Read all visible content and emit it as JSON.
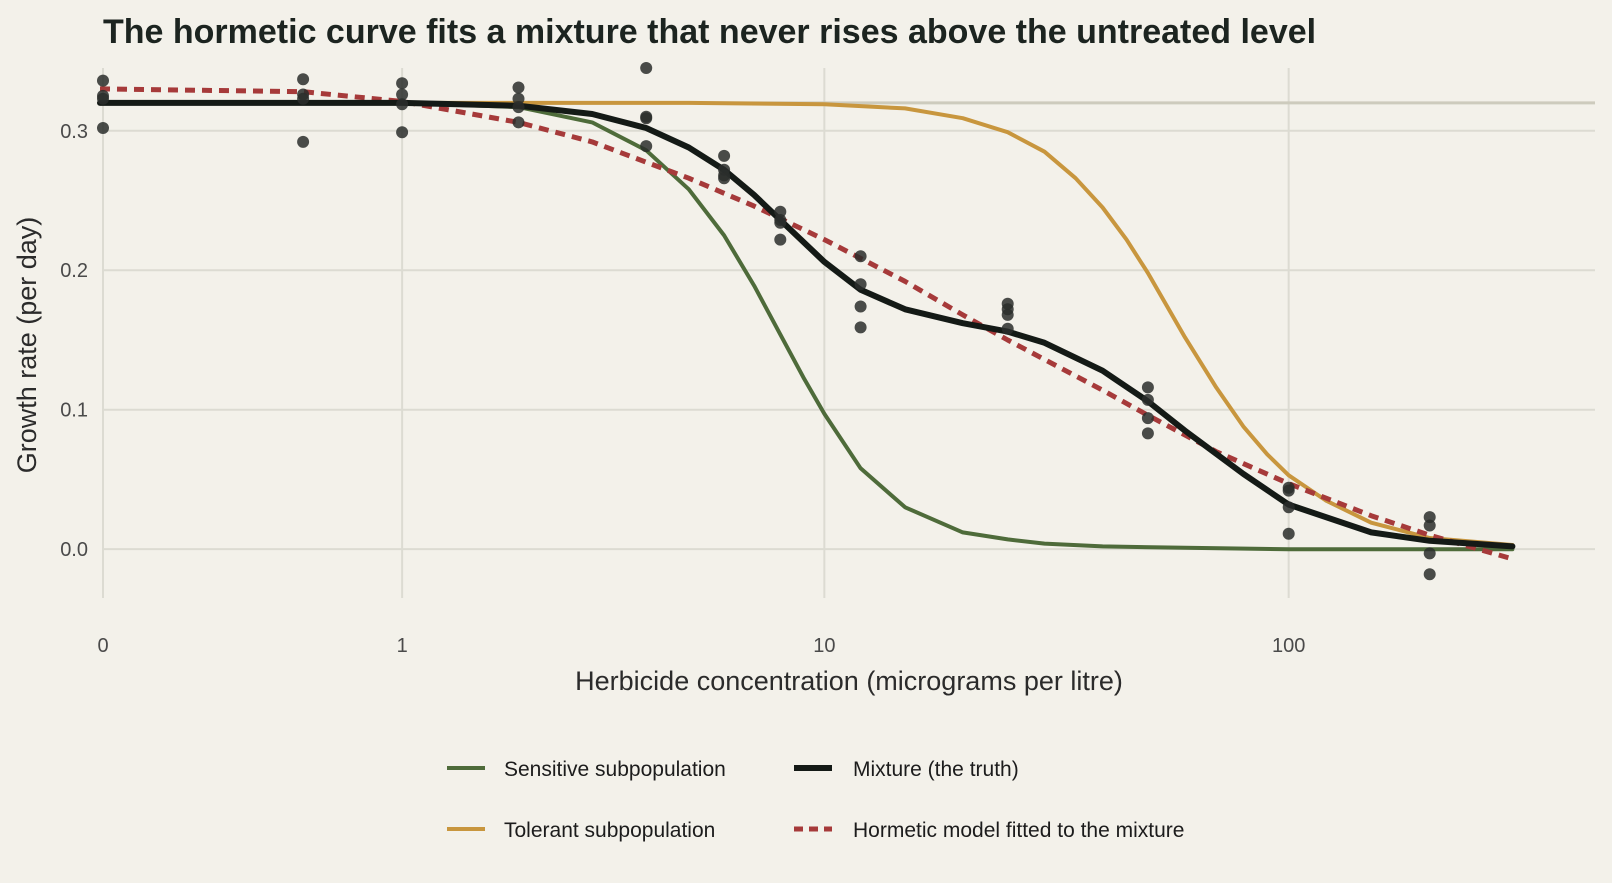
{
  "chart_data": {
    "type": "line",
    "title": "The hormetic curve fits a mixture that never rises above the untreated level",
    "xlabel": "Herbicide concentration (micrograms per litre)",
    "ylabel": "Growth rate (per day)",
    "x_scale": "log10 (concentration + 0.3)",
    "xlim": [
      0,
      450
    ],
    "ylim": [
      -0.035,
      0.345
    ],
    "x_ticks": [
      0,
      1,
      10,
      100
    ],
    "x_tick_labels": [
      "0",
      "1",
      "10",
      "100"
    ],
    "y_ticks": [
      0,
      0.1,
      0.2,
      0.3
    ],
    "y_tick_labels": [
      "0.0",
      "0.1",
      "0.2",
      "0.3"
    ],
    "grid": true,
    "legend_position": "bottom",
    "reference_line": {
      "y": 0.32,
      "color": "#cdcbbd"
    },
    "series": [
      {
        "name": "Sensitive subpopulation",
        "style": "solid",
        "color": "#4e6b3a",
        "x": [
          0,
          1,
          2,
          3,
          4,
          5,
          6,
          7,
          8,
          9,
          10,
          12,
          15,
          20,
          25,
          30,
          40,
          60,
          100,
          200,
          300
        ],
        "y": [
          0.32,
          0.32,
          0.317,
          0.306,
          0.286,
          0.258,
          0.225,
          0.189,
          0.154,
          0.123,
          0.097,
          0.058,
          0.03,
          0.012,
          0.007,
          0.004,
          0.002,
          0.001,
          0.0,
          0.0,
          0.0
        ]
      },
      {
        "name": "Mixture (the truth)",
        "style": "solid",
        "color": "#141a16",
        "x": [
          0,
          1,
          2,
          3,
          4,
          5,
          6,
          7,
          8,
          10,
          12,
          15,
          20,
          25,
          30,
          40,
          50,
          60,
          80,
          100,
          150,
          200,
          300
        ],
        "y": [
          0.32,
          0.32,
          0.318,
          0.312,
          0.302,
          0.288,
          0.272,
          0.254,
          0.236,
          0.206,
          0.186,
          0.172,
          0.162,
          0.156,
          0.148,
          0.128,
          0.106,
          0.085,
          0.054,
          0.032,
          0.012,
          0.006,
          0.002
        ]
      },
      {
        "name": "Tolerant subpopulation",
        "style": "solid",
        "color": "#c8963e",
        "x": [
          0,
          1,
          5,
          10,
          15,
          20,
          25,
          30,
          35,
          40,
          45,
          50,
          55,
          60,
          70,
          80,
          90,
          100,
          120,
          150,
          200,
          300
        ],
        "y": [
          0.32,
          0.32,
          0.32,
          0.319,
          0.316,
          0.309,
          0.299,
          0.285,
          0.266,
          0.245,
          0.222,
          0.198,
          0.174,
          0.152,
          0.116,
          0.088,
          0.068,
          0.053,
          0.035,
          0.019,
          0.008,
          0.003
        ]
      },
      {
        "name": "Hormetic model fitted to the mixture",
        "style": "dashed",
        "color": "#a63a3a",
        "x": [
          0,
          0.5,
          1,
          2,
          3,
          5,
          7,
          10,
          15,
          20,
          25,
          30,
          40,
          50,
          70,
          100,
          150,
          200,
          300
        ],
        "y": [
          0.33,
          0.328,
          0.321,
          0.306,
          0.292,
          0.266,
          0.246,
          0.222,
          0.192,
          0.168,
          0.15,
          0.136,
          0.114,
          0.096,
          0.07,
          0.047,
          0.024,
          0.01,
          -0.007
        ]
      }
    ],
    "points": {
      "color": "#2a2e2b",
      "x": [
        0,
        0,
        0,
        0,
        0.5,
        0.5,
        0.5,
        0.5,
        1,
        1,
        1,
        1,
        2,
        2,
        2,
        2,
        4,
        4,
        4,
        4,
        6,
        6,
        6,
        6,
        8,
        8,
        8,
        8,
        12,
        12,
        12,
        12,
        25,
        25,
        25,
        25,
        50,
        50,
        50,
        50,
        100,
        100,
        100,
        100,
        200,
        200,
        200,
        200
      ],
      "y": [
        0.336,
        0.325,
        0.323,
        0.302,
        0.337,
        0.326,
        0.323,
        0.292,
        0.334,
        0.326,
        0.319,
        0.299,
        0.331,
        0.323,
        0.317,
        0.306,
        0.345,
        0.31,
        0.309,
        0.289,
        0.282,
        0.272,
        0.268,
        0.266,
        0.242,
        0.236,
        0.234,
        0.222,
        0.21,
        0.19,
        0.174,
        0.159,
        0.176,
        0.172,
        0.168,
        0.158,
        0.116,
        0.107,
        0.094,
        0.083,
        0.044,
        0.042,
        0.03,
        0.011,
        0.023,
        0.017,
        -0.003,
        -0.018
      ]
    }
  }
}
